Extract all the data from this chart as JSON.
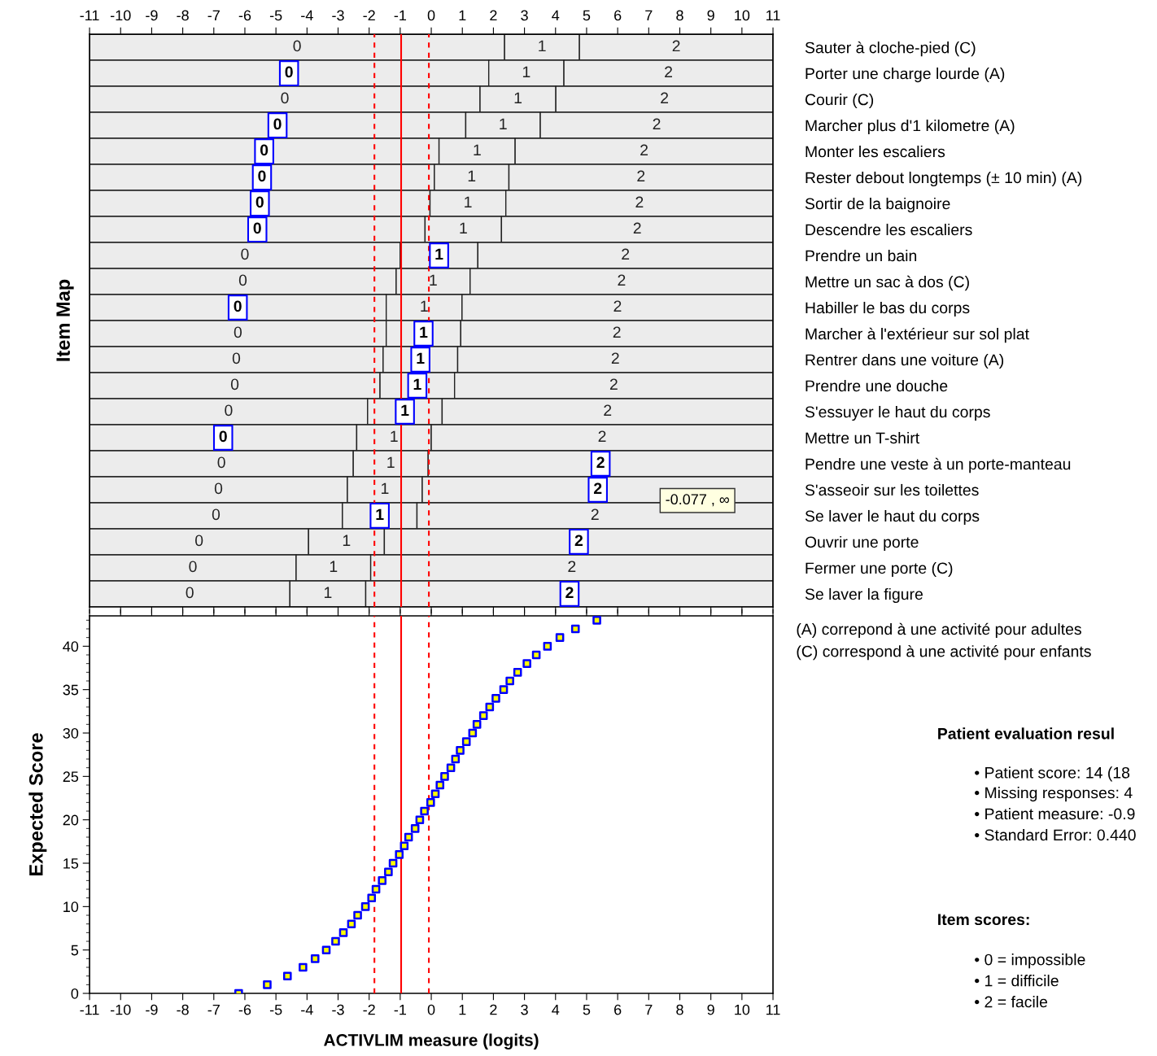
{
  "chart_data": [
    {
      "type": "bar",
      "orientation": "horizontal",
      "ylabel": "Item Map",
      "categories": [
        "Sauter à cloche-pied (C)",
        "Porter une charge lourde (A)",
        "Courir (C)",
        "Marcher plus d'1 kilometre (A)",
        "Monter les escaliers",
        "Rester debout longtemps (± 10 min) (A)",
        "Sortir de la baignoire",
        "Descendre les escaliers",
        "Prendre un bain",
        "Mettre un sac à dos (C)",
        "Habiller le bas du corps",
        "Marcher à l'extérieur sur sol plat",
        "Rentrer dans une voiture (A)",
        "Prendre une douche",
        "S'essuyer le haut du corps",
        "Mettre un T-shirt",
        "Pendre une veste à un porte-manteau",
        "S'asseoir sur les toilettes",
        "Se laver le haut du corps",
        "Ouvrir une porte",
        "Fermer une porte (C)",
        "Se laver la figure"
      ],
      "series": [
        {
          "name": "0",
          "color": "#ececec",
          "base": [
            -11,
            -11,
            -11,
            -11,
            -11,
            -11,
            -11,
            -11,
            -11,
            -11,
            -11,
            -11,
            -11,
            -11,
            -11,
            -11,
            -11,
            -11,
            -11,
            -11,
            -11,
            -11
          ],
          "values": [
            13.36,
            12.85,
            12.57,
            12.11,
            11.25,
            11.1,
            10.96,
            10.8,
            10.0,
            9.87,
            9.55,
            9.55,
            9.45,
            9.35,
            8.95,
            8.6,
            8.49,
            8.3,
            8.14,
            7.05,
            6.65,
            6.45
          ]
        },
        {
          "name": "1",
          "color": "#ececec",
          "base": [
            2.36,
            1.85,
            1.57,
            1.11,
            0.25,
            0.1,
            -0.04,
            -0.2,
            -1.0,
            -1.13,
            -1.45,
            -1.45,
            -1.55,
            -1.65,
            -2.05,
            -2.4,
            -2.51,
            -2.7,
            -2.86,
            -3.95,
            -4.35,
            -4.55
          ],
          "values": [
            2.41,
            2.42,
            2.44,
            2.4,
            2.45,
            2.4,
            2.44,
            2.46,
            2.5,
            2.38,
            2.44,
            2.4,
            2.4,
            2.4,
            2.4,
            2.4,
            2.41,
            2.41,
            2.4,
            2.44,
            2.4,
            2.44
          ]
        },
        {
          "name": "2",
          "color": "#ececec",
          "base": [
            4.77,
            4.27,
            4.01,
            3.51,
            2.7,
            2.5,
            2.4,
            2.26,
            1.5,
            1.25,
            0.99,
            0.95,
            0.85,
            0.75,
            0.35,
            0.0,
            -0.1,
            -0.29,
            -0.46,
            -1.51,
            -1.95,
            -2.11
          ],
          "values": [
            6.23,
            6.73,
            6.99,
            7.49,
            8.3,
            8.5,
            8.6,
            8.74,
            9.5,
            9.75,
            10.01,
            10.05,
            10.15,
            10.25,
            10.65,
            11.0,
            11.1,
            11.29,
            11.46,
            12.51,
            12.95,
            13.11
          ]
        }
      ],
      "xlim": [
        -11,
        11
      ],
      "xticks": [
        -11,
        -10,
        -9,
        -8,
        -7,
        -6,
        -5,
        -4,
        -3,
        -2,
        -1,
        0,
        1,
        2,
        3,
        4,
        5,
        6,
        7,
        8,
        9,
        10,
        11
      ],
      "ref_lines": [
        {
          "axis": "x",
          "value": -1.83,
          "color": "#ff0000",
          "line_style": "dashed"
        },
        {
          "axis": "x",
          "value": -0.97,
          "color": "#ff0000",
          "line_style": "solid"
        },
        {
          "axis": "x",
          "value": -0.077,
          "color": "#ff0000",
          "line_style": "dashed"
        }
      ],
      "annotations": [
        {
          "text": "0",
          "x": -4.58,
          "y": "Porter une charge lourde (A)"
        },
        {
          "text": "0",
          "x": -4.95,
          "y": "Marcher plus d'1 kilometre (A)"
        },
        {
          "text": "0",
          "x": -5.38,
          "y": "Monter les escaliers"
        },
        {
          "text": "0",
          "x": -5.45,
          "y": "Rester debout longtemps (± 10 min) (A)"
        },
        {
          "text": "0",
          "x": -5.52,
          "y": "Sortir de la baignoire"
        },
        {
          "text": "0",
          "x": -5.6,
          "y": "Descendre les escaliers"
        },
        {
          "text": "1",
          "x": 0.25,
          "y": "Prendre un bain"
        },
        {
          "text": "0",
          "x": -6.23,
          "y": "Habiller le bas du corps"
        },
        {
          "text": "1",
          "x": -0.25,
          "y": "Marcher à l'extérieur sur sol plat"
        },
        {
          "text": "1",
          "x": -0.35,
          "y": "Rentrer dans une voiture (A)"
        },
        {
          "text": "1",
          "x": -0.45,
          "y": "Prendre une douche"
        },
        {
          "text": "1",
          "x": -0.85,
          "y": "S'essuyer le haut du corps"
        },
        {
          "text": "0",
          "x": -6.7,
          "y": "Mettre un T-shirt"
        },
        {
          "text": "2",
          "x": 5.45,
          "y": "Pendre une veste à un porte-manteau"
        },
        {
          "text": "2",
          "x": 5.36,
          "y": "S'asseoir sur les toilettes"
        },
        {
          "text": "1",
          "x": -1.66,
          "y": "Se laver le haut du corps"
        },
        {
          "text": "2",
          "x": 4.75,
          "y": "Ouvrir une porte"
        },
        {
          "text": "2",
          "x": 4.45,
          "y": "Se laver la figure"
        },
        "(A) correpond à une activité pour adultes",
        "(C) correspond à une activité pour enfants",
        "-0.077 , ∞"
      ]
    },
    {
      "type": "scatter",
      "color": "#ffff00",
      "marker": "square",
      "ylabel": "Expected Score",
      "xlabel": "ACTIVLIM measure (logits)",
      "x": [
        -6.2,
        -5.28,
        -4.63,
        -4.13,
        -3.74,
        -3.38,
        -3.08,
        -2.83,
        -2.57,
        -2.37,
        -2.12,
        -1.92,
        -1.78,
        -1.58,
        -1.38,
        -1.23,
        -1.03,
        -0.87,
        -0.73,
        -0.52,
        -0.37,
        -0.22,
        -0.02,
        0.13,
        0.28,
        0.43,
        0.63,
        0.78,
        0.93,
        1.13,
        1.33,
        1.47,
        1.68,
        1.88,
        2.08,
        2.33,
        2.53,
        2.78,
        3.08,
        3.38,
        3.74,
        4.14,
        4.64,
        5.33
      ],
      "values": [
        0,
        1,
        2,
        3,
        4,
        5,
        6,
        7,
        8,
        9,
        10,
        11,
        12,
        13,
        14,
        15,
        16,
        17,
        18,
        19,
        20,
        21,
        22,
        23,
        24,
        25,
        26,
        27,
        28,
        29,
        30,
        31,
        32,
        33,
        34,
        35,
        36,
        37,
        38,
        39,
        40,
        41,
        42,
        43
      ],
      "xlim": [
        -11,
        11
      ],
      "xticks": [
        -11,
        -10,
        -9,
        -8,
        -7,
        -6,
        -5,
        -4,
        -3,
        -2,
        -1,
        0,
        1,
        2,
        3,
        4,
        5,
        6,
        7,
        8,
        9,
        10,
        11
      ],
      "ylim": [
        0,
        43.5
      ],
      "yticks": [
        0,
        5,
        10,
        15,
        20,
        25,
        30,
        35,
        40
      ],
      "ref_lines": [
        {
          "axis": "x",
          "value": -1.83,
          "color": "#ff0000",
          "line_style": "dashed"
        },
        {
          "axis": "x",
          "value": -0.97,
          "color": "#ff0000",
          "line_style": "solid"
        },
        {
          "axis": "x",
          "value": -0.077,
          "color": "#ff0000",
          "line_style": "dashed"
        }
      ],
      "annotations": [
        "Patient evaluation resul",
        "• Patient score: 14 (18",
        "• Missing responses: 4",
        "• Patient measure: -0.9",
        "• Standard Error: 0.440",
        "Item scores:",
        "• 0 = impossible",
        "• 1 = difficile",
        "• 2 = facile"
      ]
    }
  ]
}
